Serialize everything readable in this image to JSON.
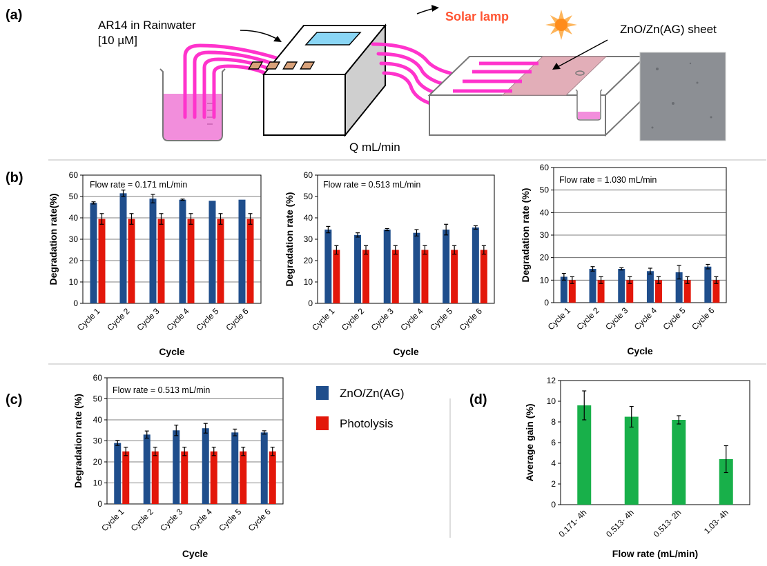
{
  "panels": {
    "a": "(a)",
    "b": "(b)",
    "c": "(c)",
    "d": "(d)"
  },
  "schematic": {
    "feed_label_line1": "AR14  in Rainwater",
    "feed_label_line2": "[10 µM]",
    "lamp_label": "Solar lamp",
    "sheet_label": "ZnO/Zn(AG)  sheet",
    "flow_label": "Q mL/min"
  },
  "legend": {
    "series1": "ZnO/Zn(AG)",
    "series2": "Photolysis"
  },
  "colors": {
    "zno": "#1f4e8c",
    "photolysis": "#e3170a",
    "gain": "#18b04a",
    "pink_tube": "#ff33cc",
    "lamp_text": "#ff5533"
  },
  "chart_data": [
    {
      "panel": "b",
      "type": "bar",
      "annotation": "Flow rate = 0.171 mL/min",
      "xlabel": "Cycle",
      "ylabel": "Degradation rate(%)",
      "ylim": [
        0,
        60
      ],
      "yticks": [
        0,
        10,
        20,
        30,
        40,
        50,
        60
      ],
      "grid": true,
      "categories": [
        "Cycle 1",
        "Cycle 2",
        "Cycle 3",
        "Cycle 4",
        "Cycle 5",
        "Cycle 6"
      ],
      "series": [
        {
          "name": "ZnO/Zn(AG)",
          "values": [
            47,
            51.5,
            49,
            48.5,
            48,
            48.5
          ],
          "errors": [
            0.5,
            1.5,
            2,
            0.3,
            0,
            0
          ]
        },
        {
          "name": "Photolysis",
          "values": [
            39.5,
            39.5,
            39.5,
            39.5,
            39.5,
            39.5
          ],
          "errors": [
            2.5,
            2.5,
            2.5,
            2.5,
            2.5,
            2.5
          ]
        }
      ]
    },
    {
      "panel": "b",
      "type": "bar",
      "annotation": "Flow rate = 0.513 mL/min",
      "xlabel": "Cycle",
      "ylabel": "Degradation rate (%)",
      "ylim": [
        0,
        60
      ],
      "yticks": [
        0,
        10,
        20,
        30,
        40,
        50,
        60
      ],
      "grid": false,
      "categories": [
        "Cycle 1",
        "Cycle 2",
        "Cycle 3",
        "Cycle 4",
        "Cycle 5",
        "Cycle 6"
      ],
      "series": [
        {
          "name": "ZnO/Zn(AG)",
          "values": [
            34.5,
            32,
            34.5,
            33,
            34.5,
            35.5
          ],
          "errors": [
            1.5,
            1,
            0.5,
            1.5,
            2.5,
            0.8
          ]
        },
        {
          "name": "Photolysis",
          "values": [
            25,
            25,
            25,
            25,
            25,
            25
          ],
          "errors": [
            2,
            2,
            2,
            2,
            2,
            2
          ]
        }
      ]
    },
    {
      "panel": "b",
      "type": "bar",
      "annotation": "Flow rate = 1.030 mL/min",
      "xlabel": "Cycle",
      "ylabel": "Degradation rate (%)",
      "ylim": [
        0,
        60
      ],
      "yticks": [
        0,
        10,
        20,
        30,
        40,
        50,
        60
      ],
      "grid": true,
      "categories": [
        "Cycle 1",
        "Cycle 2",
        "Cycle 3",
        "Cycle 4",
        "Cycle 5",
        "Cycle 6"
      ],
      "series": [
        {
          "name": "ZnO/Zn(AG)",
          "values": [
            11.5,
            15,
            15,
            14,
            13.5,
            16
          ],
          "errors": [
            1.5,
            1,
            0.5,
            1.3,
            3,
            1
          ]
        },
        {
          "name": "Photolysis",
          "values": [
            10,
            10,
            10,
            10,
            10,
            10
          ],
          "errors": [
            1.5,
            1.5,
            1.5,
            1.5,
            1.5,
            1.5
          ]
        }
      ]
    },
    {
      "panel": "c",
      "type": "bar",
      "annotation": "Flow rate = 0.513 mL/min",
      "xlabel": "Cycle",
      "ylabel": "Degradation rate (%)",
      "ylim": [
        0,
        60
      ],
      "yticks": [
        0,
        10,
        20,
        30,
        40,
        50,
        60
      ],
      "grid": true,
      "categories": [
        "Cycle 1",
        "Cycle 2",
        "Cycle 3",
        "Cycle 4",
        "Cycle 5",
        "Cycle 6"
      ],
      "series": [
        {
          "name": "ZnO/Zn(AG)",
          "values": [
            29,
            33,
            35,
            36,
            34,
            34
          ],
          "errors": [
            1.2,
            1.7,
            2.5,
            2.3,
            1.6,
            0.8
          ]
        },
        {
          "name": "Photolysis",
          "values": [
            25,
            25,
            25,
            25,
            25,
            25
          ],
          "errors": [
            2,
            2,
            2,
            2,
            2,
            2
          ]
        }
      ]
    },
    {
      "panel": "d",
      "type": "bar",
      "xlabel": "Flow rate (mL/min)",
      "ylabel": "Average gain (%)",
      "ylim": [
        0,
        12
      ],
      "yticks": [
        0,
        2,
        4,
        6,
        8,
        10,
        12
      ],
      "grid": false,
      "categories": [
        "0.171- 4h",
        "0.513- 4h",
        "0.513- 2h",
        "1.03- 4h"
      ],
      "series": [
        {
          "values": [
            9.6,
            8.5,
            8.2,
            4.4
          ],
          "errors": [
            1.4,
            1.0,
            0.4,
            1.3
          ]
        }
      ]
    }
  ]
}
